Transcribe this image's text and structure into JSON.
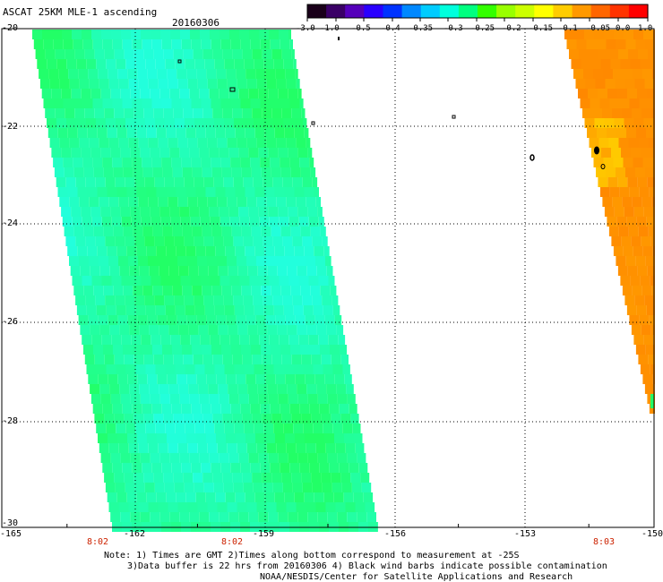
{
  "header": {
    "title": "ASCAT 25KM MLE-1 ascending",
    "date": "20160306"
  },
  "colorbar": {
    "ticks": [
      "-3.0",
      "-1.0",
      "-0.5",
      "-0.4",
      "-0.35",
      "-0.3",
      "-0.25",
      "-0.2",
      "-0.15",
      "-0.1",
      "-0.05",
      "0.0",
      "1.0"
    ],
    "colors": [
      "#1a001a",
      "#3a0066",
      "#5500bb",
      "#2a00ff",
      "#0033ff",
      "#0088ff",
      "#00ccff",
      "#00ffdd",
      "#00ff80",
      "#33ff00",
      "#99ff00",
      "#ccff00",
      "#ffff00",
      "#ffcc00",
      "#ff9900",
      "#ff6600",
      "#ff3300",
      "#ff0000"
    ]
  },
  "map": {
    "lat_labels": [
      "-20",
      "-22",
      "-24",
      "-26",
      "-28",
      "-30"
    ],
    "lon_labels": [
      "-165",
      "-162",
      "-159",
      "-156",
      "-153",
      "-150"
    ],
    "time_labels": [
      "8:02",
      "8:02",
      "8:03"
    ],
    "swath_colors": {
      "cyan": "#22ffdd",
      "green": "#22ff66",
      "orange": "#ff8800",
      "yellow": "#ffcc00"
    }
  },
  "notes": {
    "line1": "Note: 1) Times are GMT 2)Times along bottom correspond to measurement at -25S",
    "line2": "3)Data buffer is 22 hrs from 20160306 4) Black wind barbs indicate possible contamination",
    "line3": "NOAA/NESDIS/Center for Satellite Applications and Research"
  }
}
